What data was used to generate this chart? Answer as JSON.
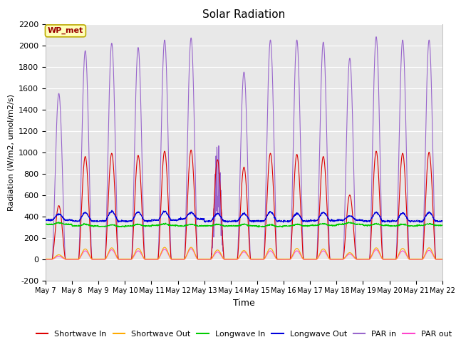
{
  "title": "Solar Radiation",
  "ylabel": "Radiation (W/m2, umol/m2/s)",
  "xlabel": "Time",
  "ylim": [
    -200,
    2200
  ],
  "annotation": "WP_met",
  "num_days": 15,
  "bg_color": "#e8e8e8",
  "series": {
    "shortwave_in": {
      "color": "#dd0000",
      "label": "Shortwave In"
    },
    "shortwave_out": {
      "color": "#ffaa00",
      "label": "Shortwave Out"
    },
    "longwave_in": {
      "color": "#00cc00",
      "label": "Longwave In"
    },
    "longwave_out": {
      "color": "#0000dd",
      "label": "Longwave Out"
    },
    "par_in": {
      "color": "#9966cc",
      "label": "PAR in"
    },
    "par_out": {
      "color": "#ff44cc",
      "label": "PAR out"
    }
  },
  "tick_labels": [
    "May 7",
    "May 8",
    "May 9",
    "May 10",
    "May 11",
    "May 12",
    "May 13",
    "May 14",
    "May 15",
    "May 16",
    "May 17",
    "May 18",
    "May 19",
    "May 20",
    "May 21",
    "May 22"
  ],
  "yticks": [
    -200,
    0,
    200,
    400,
    600,
    800,
    1000,
    1200,
    1400,
    1600,
    1800,
    2000,
    2200
  ]
}
